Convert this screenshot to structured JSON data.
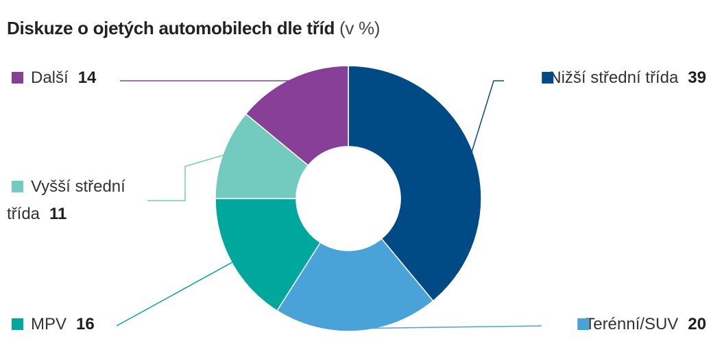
{
  "title": {
    "main": "Diskuze o ojetých automobilech dle tříd",
    "unit": "(v %)"
  },
  "chart_data": {
    "type": "pie",
    "variant": "donut",
    "title": "Diskuze o ojetých automobilech dle tříd",
    "unit": "(v %)",
    "start_angle_deg": 0,
    "direction": "clockwise",
    "slices": [
      {
        "label": "Nižší střední třída",
        "value": 39,
        "color": "#004a86"
      },
      {
        "label": "Terénní/SUV",
        "value": 20,
        "color": "#4aa3d8"
      },
      {
        "label": "MPV",
        "value": 16,
        "color": "#00a79d"
      },
      {
        "label": "Vyšší střední třída",
        "label_lines": [
          "Vyšší střední",
          "třída"
        ],
        "value": 11,
        "color": "#72cbbe"
      },
      {
        "label": "Další",
        "value": 14,
        "color": "#883f98"
      }
    ]
  }
}
